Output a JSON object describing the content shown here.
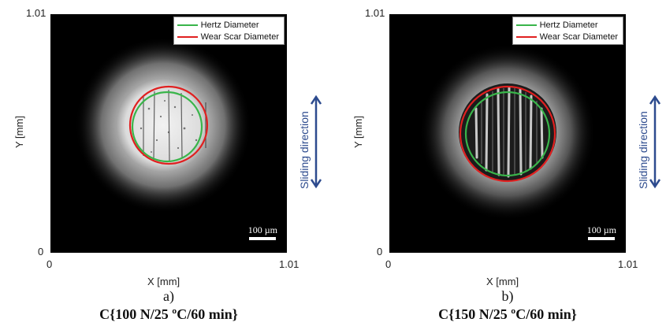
{
  "legend": {
    "hertz_label": "Hertz Diameter",
    "hertz_color": "#39b54a",
    "wear_label": "Wear Scar Diameter",
    "wear_color": "#e02020"
  },
  "axes": {
    "x_label": "X [mm]",
    "y_label": "Y [mm]",
    "x_min": "0",
    "x_max": "1.01",
    "y_min": "0",
    "y_max": "1.01"
  },
  "scale_label": "100 µm",
  "sliding_label": "Sliding direction",
  "sliding_color": "#2d4b8e",
  "panels": [
    {
      "sub_label": "a)",
      "caption": "C{100 N/25 ºC/60 min}"
    },
    {
      "sub_label": "b)",
      "caption": "C{150 N/25 ºC/60 min}"
    }
  ]
}
